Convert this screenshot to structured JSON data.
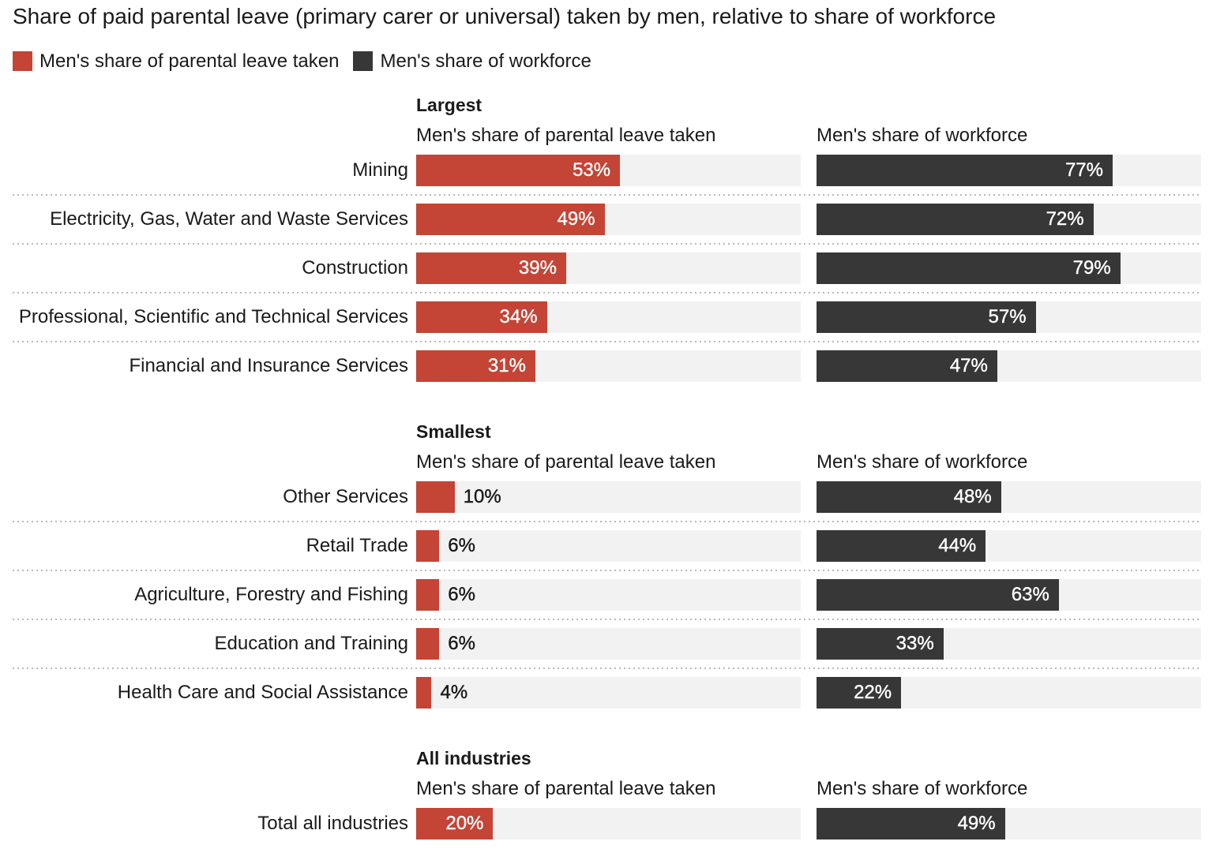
{
  "title": "Share of paid parental leave (primary carer or universal) taken by men, relative to share of workforce",
  "legend": {
    "leave": "Men's share of parental leave taken",
    "workforce": "Men's share of workforce"
  },
  "colors": {
    "leave": "#c44435",
    "workforce": "#373737",
    "track": "#f2f2f2"
  },
  "chart_data": {
    "type": "bar",
    "unit": "%",
    "xlim": [
      0,
      100
    ],
    "series_names": [
      "Men's share of parental leave taken",
      "Men's share of workforce"
    ],
    "groups": [
      {
        "name": "Largest",
        "col1_header": "Men's share of parental leave taken",
        "col2_header": "Men's share of workforce",
        "rows": [
          {
            "industry": "Mining",
            "leave": 53,
            "leave_label": "53%",
            "workforce": 77,
            "workforce_label": "77%"
          },
          {
            "industry": "Electricity, Gas, Water and Waste Services",
            "leave": 49,
            "leave_label": "49%",
            "workforce": 72,
            "workforce_label": "72%"
          },
          {
            "industry": "Construction",
            "leave": 39,
            "leave_label": "39%",
            "workforce": 79,
            "workforce_label": "79%"
          },
          {
            "industry": "Professional, Scientific and Technical Services",
            "leave": 34,
            "leave_label": "34%",
            "workforce": 57,
            "workforce_label": "57%"
          },
          {
            "industry": "Financial and Insurance Services",
            "leave": 31,
            "leave_label": "31%",
            "workforce": 47,
            "workforce_label": "47%"
          }
        ]
      },
      {
        "name": "Smallest",
        "col1_header": "Men's share of parental leave taken",
        "col2_header": "Men's share of workforce",
        "rows": [
          {
            "industry": "Other Services",
            "leave": 10,
            "leave_label": "10%",
            "workforce": 48,
            "workforce_label": "48%"
          },
          {
            "industry": "Retail Trade",
            "leave": 6,
            "leave_label": "6%",
            "workforce": 44,
            "workforce_label": "44%"
          },
          {
            "industry": "Agriculture, Forestry and Fishing",
            "leave": 6,
            "leave_label": "6%",
            "workforce": 63,
            "workforce_label": "63%"
          },
          {
            "industry": "Education and Training",
            "leave": 6,
            "leave_label": "6%",
            "workforce": 33,
            "workforce_label": "33%"
          },
          {
            "industry": "Health Care and Social Assistance",
            "leave": 4,
            "leave_label": "4%",
            "workforce": 22,
            "workforce_label": "22%"
          }
        ]
      },
      {
        "name": "All industries",
        "col1_header": "Men's share of parental leave taken",
        "col2_header": "Men's share of workforce",
        "rows": [
          {
            "industry": "Total all industries",
            "leave": 20,
            "leave_label": "20%",
            "workforce": 49,
            "workforce_label": "49%"
          }
        ]
      }
    ]
  }
}
